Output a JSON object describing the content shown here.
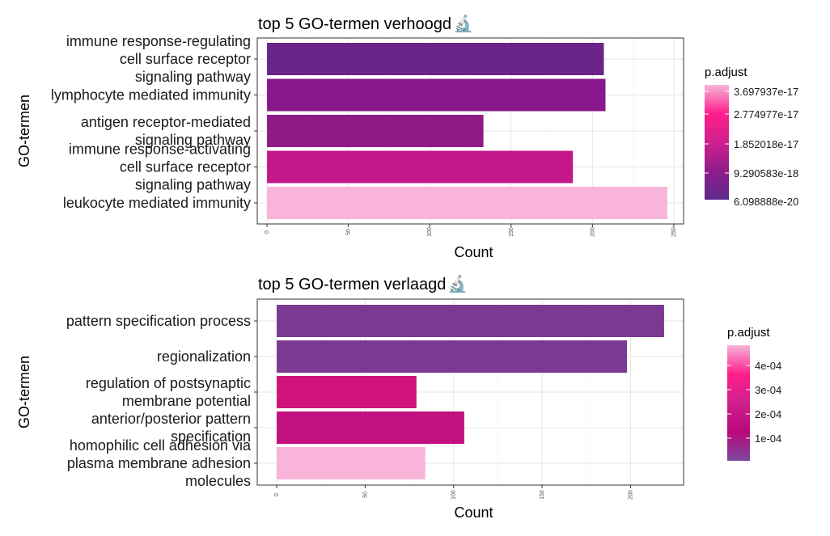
{
  "chart_data": [
    {
      "type": "bar",
      "orientation": "horizontal",
      "title": "top 5 GO-termen verhoogd",
      "title_icon": "microscope-icon",
      "title_icon_glyph": "🔬",
      "xlabel": "Count",
      "ylabel": "GO-termen",
      "xlim": [
        -6,
        256
      ],
      "xticks": [
        0,
        50,
        100,
        150,
        200,
        250
      ],
      "grid": true,
      "categories": [
        [
          "immune response-regulating",
          "cell surface receptor",
          "signaling pathway"
        ],
        [
          "lymphocyte mediated immunity"
        ],
        [
          "antigen receptor-mediated",
          "signaling pathway"
        ],
        [
          "immune response-activating",
          "cell surface receptor",
          "signaling pathway"
        ],
        [
          "leukocyte mediated immunity"
        ]
      ],
      "values": [
        207,
        208,
        133,
        188,
        246
      ],
      "bar_colors": [
        "#6a2389",
        "#87178a",
        "#8e1a86",
        "#c4178a",
        "#f8b4d9"
      ],
      "legend": {
        "title": "p.adjust",
        "position": "right",
        "gradient": [
          "#f8b4d9",
          "#ff1e8c",
          "#d0208e",
          "#8f1d8a",
          "#5d2a8e"
        ],
        "labels": [
          "3.697937e-17",
          "2.774977e-17",
          "1.852018e-17",
          "9.290583e-18",
          "6.098888e-20"
        ]
      }
    },
    {
      "type": "bar",
      "orientation": "horizontal",
      "title": "top 5 GO-termen verlaagd",
      "title_icon": "microscope-icon",
      "title_icon_glyph": "🔬",
      "xlabel": "Count",
      "ylabel": "GO-termen",
      "xlim": [
        -11,
        230
      ],
      "xticks": [
        0,
        50,
        100,
        150,
        200
      ],
      "grid": true,
      "categories": [
        [
          "pattern specification process"
        ],
        [
          "regionalization"
        ],
        [
          "regulation of postsynaptic",
          "membrane potential"
        ],
        [
          "anterior/posterior pattern",
          "specification"
        ],
        [
          "homophilic cell adhesion via",
          "plasma membrane adhesion",
          "molecules"
        ]
      ],
      "values": [
        219,
        198,
        79,
        106,
        84
      ],
      "bar_colors": [
        "#7b3a91",
        "#7b3a91",
        "#d0127a",
        "#c2107e",
        "#f8b4d9"
      ],
      "legend": {
        "title": "p.adjust",
        "position": "right",
        "gradient": [
          "#f8b4d9",
          "#ff1e8c",
          "#d0208e",
          "#b8087a",
          "#7b4a9e"
        ],
        "labels": [
          "4e-04",
          "3e-04",
          "2e-04",
          "1e-04"
        ]
      }
    }
  ]
}
